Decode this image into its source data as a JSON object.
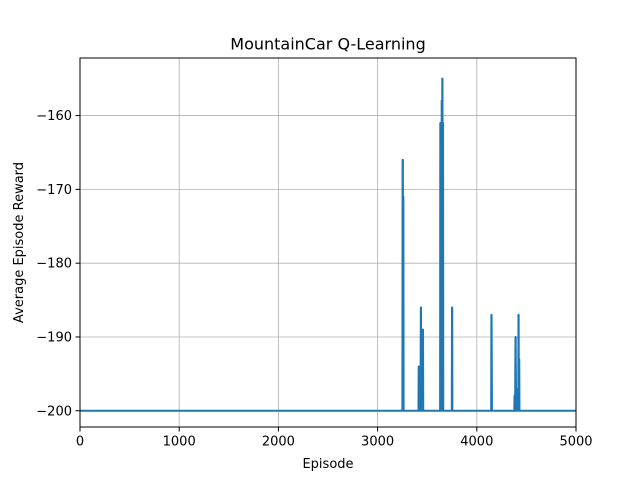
{
  "chart_data": {
    "type": "line",
    "title": "MountainCar Q-Learning",
    "xlabel": "Episode",
    "ylabel": "Average Episode Reward",
    "xlim": [
      0,
      5000
    ],
    "ylim": [
      -202.2,
      -152.2
    ],
    "xticks": [
      0,
      1000,
      2000,
      3000,
      4000,
      5000
    ],
    "yticks": [
      -200,
      -190,
      -180,
      -170,
      -160
    ],
    "grid": true,
    "legend": "none",
    "line_color": "#1f77b4",
    "series": [
      {
        "x": [
          0,
          3250,
          3252,
          3255,
          3256,
          3258,
          3260,
          3262,
          3264,
          3266,
          3270,
          3412,
          3414,
          3416,
          3420,
          3432,
          3436,
          3438,
          3440,
          3442,
          3446,
          3452,
          3456,
          3458,
          3460,
          3464,
          3468,
          3476,
          3480,
          3482,
          3484,
          3486,
          3490,
          3630,
          3632,
          3634,
          3636,
          3640,
          3642,
          3644,
          3646,
          3648,
          3650,
          3652,
          3654,
          3656,
          3658,
          3660,
          3662,
          3664,
          3666,
          3668,
          3670,
          3672,
          3674,
          3676,
          3678,
          3680,
          3682,
          3684,
          3686,
          3690,
          3748,
          3750,
          3752,
          3754,
          3758,
          4145,
          4147,
          4149,
          4153,
          4378,
          4380,
          4382,
          4386,
          4390,
          4392,
          4396,
          4398,
          4400,
          4402,
          4404,
          4406,
          4410,
          4418,
          4420,
          4422,
          4424,
          4426,
          4428,
          4430,
          4432,
          4434,
          4436,
          4440,
          4442,
          4444,
          4446,
          4448,
          4450,
          4454,
          5000
        ],
        "y": [
          -200,
          -200,
          -166,
          -166,
          -200,
          -171,
          -171,
          -200,
          -200,
          -200,
          -200,
          -200,
          -194,
          -194,
          -200,
          -200,
          -186,
          -186,
          -200,
          -197,
          -200,
          -200,
          -189,
          -189,
          -200,
          -200,
          -200,
          -200,
          -200,
          -200,
          -200,
          -200,
          -200,
          -200,
          -161,
          -161,
          -200,
          -161,
          -161,
          -200,
          -158,
          -158,
          -200,
          -155,
          -155,
          -200,
          -161,
          -161,
          -200,
          -200,
          -200,
          -200,
          -200,
          -200,
          -200,
          -200,
          -200,
          -200,
          -200,
          -200,
          -200,
          -200,
          -200,
          -186,
          -186,
          -200,
          -200,
          -200,
          -187,
          -187,
          -200,
          -200,
          -198,
          -198,
          -200,
          -190,
          -190,
          -200,
          -197,
          -200,
          -200,
          -200,
          -200,
          -200,
          -200,
          -187,
          -187,
          -200,
          -193,
          -193,
          -200,
          -200,
          -200,
          -200,
          -200,
          -200,
          -200,
          -200,
          -200,
          -200,
          -200,
          -200
        ]
      }
    ]
  }
}
